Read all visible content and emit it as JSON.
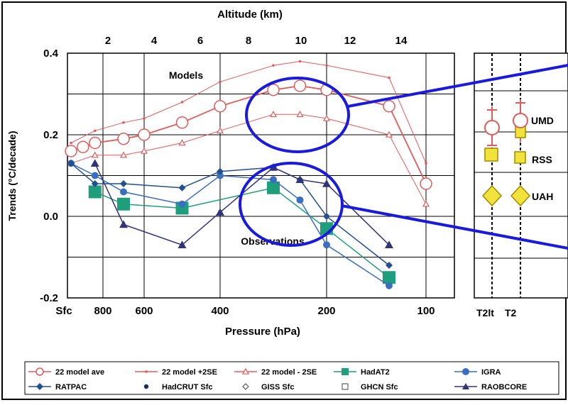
{
  "chart_data": {
    "type": "line",
    "title": "",
    "top_axis_label": "Altitude (km)",
    "top_ticks": [
      "2",
      "4",
      "6",
      "8",
      "10",
      "12",
      "14"
    ],
    "xlabel": "Pressure (hPa)",
    "ylabel": "Trends (°C/decade)",
    "x_ticks": [
      "Sfc",
      "800",
      "600",
      "400",
      "200",
      "100"
    ],
    "y_ticks": [
      "0.4",
      "0.2",
      "0.0",
      "-0.2"
    ],
    "ylim": [
      -0.2,
      0.4
    ],
    "grid": true,
    "annotations": [
      "Models",
      "Observations"
    ],
    "series": [
      {
        "name": "22 model ave",
        "color": "#e05b5b",
        "marker": "open-circle",
        "points": [
          [
            1000,
            0.16
          ],
          [
            925,
            0.17
          ],
          [
            850,
            0.18
          ],
          [
            700,
            0.19
          ],
          [
            600,
            0.2
          ],
          [
            500,
            0.23
          ],
          [
            400,
            0.27
          ],
          [
            300,
            0.31
          ],
          [
            250,
            0.32
          ],
          [
            200,
            0.31
          ],
          [
            150,
            0.27
          ],
          [
            100,
            0.08
          ]
        ]
      },
      {
        "name": "22 model +2SE",
        "color": "#e05b5b",
        "marker": "dot",
        "points": [
          [
            1000,
            0.18
          ],
          [
            850,
            0.21
          ],
          [
            700,
            0.23
          ],
          [
            600,
            0.24
          ],
          [
            500,
            0.28
          ],
          [
            400,
            0.33
          ],
          [
            300,
            0.37
          ],
          [
            250,
            0.38
          ],
          [
            200,
            0.37
          ],
          [
            150,
            0.34
          ],
          [
            100,
            0.13
          ]
        ]
      },
      {
        "name": "22 model - 2SE",
        "color": "#e05b5b",
        "marker": "open-triangle",
        "points": [
          [
            1000,
            0.13
          ],
          [
            850,
            0.15
          ],
          [
            700,
            0.15
          ],
          [
            600,
            0.16
          ],
          [
            500,
            0.18
          ],
          [
            400,
            0.21
          ],
          [
            300,
            0.25
          ],
          [
            250,
            0.25
          ],
          [
            200,
            0.24
          ],
          [
            150,
            0.2
          ],
          [
            100,
            0.03
          ]
        ]
      },
      {
        "name": "HadAT2",
        "color": "#1e9e7a",
        "marker": "square",
        "points": [
          [
            850,
            0.06
          ],
          [
            700,
            0.03
          ],
          [
            500,
            0.02
          ],
          [
            300,
            0.07
          ],
          [
            200,
            -0.03
          ],
          [
            150,
            -0.15
          ]
        ]
      },
      {
        "name": "IGRA",
        "color": "#3a6fc0",
        "marker": "circle",
        "points": [
          [
            1000,
            0.13
          ],
          [
            850,
            0.1
          ],
          [
            700,
            0.06
          ],
          [
            500,
            0.03
          ],
          [
            400,
            0.1
          ],
          [
            300,
            0.09
          ],
          [
            250,
            0.04
          ],
          [
            200,
            -0.07
          ],
          [
            150,
            -0.17
          ]
        ]
      },
      {
        "name": "RATPAC",
        "color": "#244f8e",
        "marker": "diamond",
        "points": [
          [
            1000,
            0.13
          ],
          [
            850,
            0.08
          ],
          [
            700,
            0.08
          ],
          [
            500,
            0.07
          ],
          [
            400,
            0.11
          ],
          [
            300,
            0.12
          ],
          [
            250,
            0.09
          ],
          [
            200,
            0.0
          ],
          [
            150,
            -0.12
          ]
        ]
      },
      {
        "name": "HadCRUT Sfc",
        "color": "#1b2a5c",
        "marker": "dot-large",
        "points": []
      },
      {
        "name": "GISS Sfc",
        "color": "#444444",
        "marker": "open-diamond",
        "points": []
      },
      {
        "name": "GHCN Sfc",
        "color": "#444444",
        "marker": "open-square",
        "points": []
      },
      {
        "name": "RAOBCORE",
        "color": "#33337a",
        "marker": "triangle",
        "points": [
          [
            850,
            0.13
          ],
          [
            700,
            -0.02
          ],
          [
            500,
            -0.07
          ],
          [
            400,
            0.01
          ],
          [
            300,
            0.12
          ],
          [
            250,
            0.09
          ],
          [
            200,
            0.08
          ],
          [
            150,
            -0.07
          ]
        ]
      }
    ],
    "satellite_panel": {
      "x_labels": [
        "T2lt",
        "T2"
      ],
      "datasets": [
        "UMD",
        "RSS",
        "UAH"
      ]
    }
  },
  "legend": {
    "row1": [
      "22 model ave",
      "22 model +2SE",
      "22 model - 2SE",
      "HadAT2",
      "IGRA"
    ],
    "row2": [
      "RATPAC",
      "HadCRUT Sfc",
      "GISS Sfc",
      "GHCN Sfc",
      "RAOBCORE"
    ]
  }
}
